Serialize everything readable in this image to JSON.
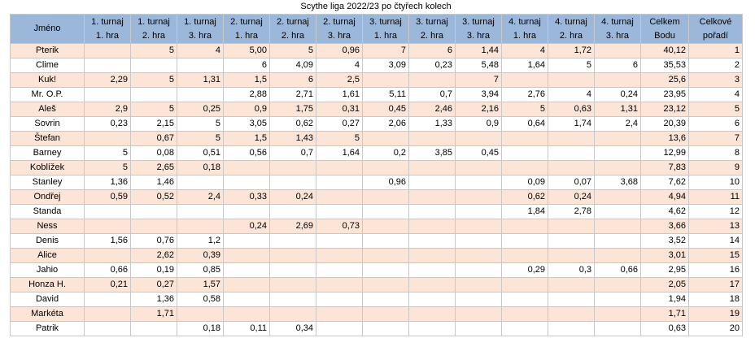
{
  "title": "Scythe liga 2022/23 po čtyřech kolech",
  "table": {
    "header": [
      [
        "Jméno"
      ],
      [
        "1. turnaj",
        "1. hra"
      ],
      [
        "1. turnaj",
        "2. hra"
      ],
      [
        "1. turnaj",
        "3. hra"
      ],
      [
        "2. turnaj",
        "1. hra"
      ],
      [
        "2. turnaj",
        "2. hra"
      ],
      [
        "2. turnaj",
        "3. hra"
      ],
      [
        "3. turnaj",
        "1. hra"
      ],
      [
        "3. turnaj",
        "2. hra"
      ],
      [
        "3. turnaj",
        "3. hra"
      ],
      [
        "4. turnaj",
        "1. hra"
      ],
      [
        "4. turnaj",
        "2. hra"
      ],
      [
        "4. turnaj",
        "3. hra"
      ],
      [
        "Celkem",
        "Bodu"
      ],
      [
        "Celkové",
        "pořadí"
      ]
    ],
    "rows": [
      [
        "Pterik",
        null,
        "5",
        "4",
        "5,00",
        "5",
        "0,96",
        "7",
        "6",
        "1,44",
        "4",
        "1,72",
        null,
        "40,12",
        "1"
      ],
      [
        "Clime",
        null,
        null,
        null,
        "6",
        "4,09",
        "4",
        "3,09",
        "0,23",
        "5,48",
        "1,64",
        "5",
        "6",
        "35,53",
        "2"
      ],
      [
        "Kuk!",
        "2,29",
        "5",
        "1,31",
        "1,5",
        "6",
        "2,5",
        null,
        null,
        "7",
        null,
        null,
        null,
        "25,6",
        "3"
      ],
      [
        "Mr. O.P.",
        null,
        null,
        null,
        "2,88",
        "2,71",
        "1,61",
        "5,11",
        "0,7",
        "3,94",
        "2,76",
        "4",
        "0,24",
        "23,95",
        "4"
      ],
      [
        "Aleš",
        "2,9",
        "5",
        "0,25",
        "0,9",
        "1,75",
        "0,31",
        "0,45",
        "2,46",
        "2,16",
        "5",
        "0,63",
        "1,31",
        "23,12",
        "5"
      ],
      [
        "Sovrin",
        "0,23",
        "2,15",
        "5",
        "3,05",
        "0,62",
        "0,27",
        "2,06",
        "1,33",
        "0,9",
        "0,64",
        "1,74",
        "2,4",
        "20,39",
        "6"
      ],
      [
        "Štefan",
        null,
        "0,67",
        "5",
        "1,5",
        "1,43",
        "5",
        null,
        null,
        null,
        null,
        null,
        null,
        "13,6",
        "7"
      ],
      [
        "Barney",
        "5",
        "0,08",
        "0,51",
        "0,56",
        "0,7",
        "1,64",
        "0,2",
        "3,85",
        "0,45",
        null,
        null,
        null,
        "12,99",
        "8"
      ],
      [
        "Koblížek",
        "5",
        "2,65",
        "0,18",
        null,
        null,
        null,
        null,
        null,
        null,
        null,
        null,
        null,
        "7,83",
        "9"
      ],
      [
        "Stanley",
        "1,36",
        "1,46",
        null,
        null,
        null,
        null,
        "0,96",
        null,
        null,
        "0,09",
        "0,07",
        "3,68",
        "7,62",
        "10"
      ],
      [
        "Ondřej",
        "0,59",
        "0,52",
        "2,4",
        "0,33",
        "0,24",
        null,
        null,
        null,
        null,
        "0,62",
        "0,24",
        null,
        "4,94",
        "11"
      ],
      [
        "Standa",
        null,
        null,
        null,
        null,
        null,
        null,
        null,
        null,
        null,
        "1,84",
        "2,78",
        null,
        "4,62",
        "12"
      ],
      [
        "Ness",
        null,
        null,
        null,
        "0,24",
        "2,69",
        "0,73",
        null,
        null,
        null,
        null,
        null,
        null,
        "3,66",
        "13"
      ],
      [
        "Denis",
        "1,56",
        "0,76",
        "1,2",
        null,
        null,
        null,
        null,
        null,
        null,
        null,
        null,
        null,
        "3,52",
        "14"
      ],
      [
        "Alice",
        null,
        "2,62",
        "0,39",
        null,
        null,
        null,
        null,
        null,
        null,
        null,
        null,
        null,
        "3,01",
        "15"
      ],
      [
        "Jahio",
        "0,66",
        "0,19",
        "0,85",
        null,
        null,
        null,
        null,
        null,
        null,
        "0,29",
        "0,3",
        "0,66",
        "2,95",
        "16"
      ],
      [
        "Honza H.",
        "0,21",
        "0,27",
        "1,57",
        null,
        null,
        null,
        null,
        null,
        null,
        null,
        null,
        null,
        "2,05",
        "17"
      ],
      [
        "David",
        null,
        "1,36",
        "0,58",
        null,
        null,
        null,
        null,
        null,
        null,
        null,
        null,
        null,
        "1,94",
        "18"
      ],
      [
        "Markéta",
        null,
        "1,71",
        null,
        null,
        null,
        null,
        null,
        null,
        null,
        null,
        null,
        null,
        "1,71",
        "19"
      ],
      [
        "Patrik",
        null,
        null,
        "0,18",
        "0,11",
        "0,34",
        null,
        null,
        null,
        null,
        null,
        null,
        null,
        "0,63",
        "20"
      ]
    ]
  }
}
